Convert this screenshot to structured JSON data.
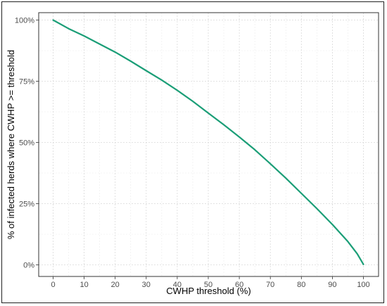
{
  "chart_data": {
    "type": "line",
    "xlabel": "CWHP threshold (%)",
    "ylabel": "% of infected herds where CWHP >= threshold",
    "xlim": [
      0,
      100
    ],
    "ylim": [
      0,
      100
    ],
    "x_ticks": [
      0,
      10,
      20,
      30,
      40,
      50,
      60,
      70,
      80,
      90,
      100
    ],
    "x_tick_labels": [
      "0",
      "10",
      "20",
      "30",
      "40",
      "50",
      "60",
      "70",
      "80",
      "90",
      "100"
    ],
    "y_ticks": [
      0,
      25,
      50,
      75,
      100
    ],
    "y_tick_labels": [
      "0%",
      "25%",
      "50%",
      "75%",
      "100%"
    ],
    "grid": true,
    "line_color": "#1b9e77",
    "series": [
      {
        "x": [
          0,
          5,
          10,
          15,
          20,
          25,
          30,
          35,
          40,
          45,
          50,
          55,
          60,
          65,
          70,
          75,
          80,
          85,
          90,
          95,
          98,
          100
        ],
        "values": [
          100,
          96.5,
          93.5,
          90.2,
          86.9,
          83.2,
          79.3,
          75.5,
          71.3,
          66.8,
          62.0,
          57.2,
          52.2,
          47.0,
          41.3,
          35.4,
          29.2,
          23.0,
          16.5,
          9.5,
          4.5,
          0.2
        ]
      }
    ]
  }
}
